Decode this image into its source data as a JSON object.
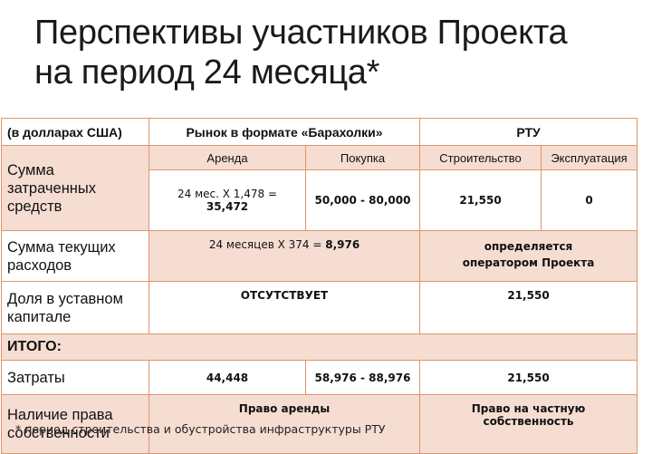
{
  "title": {
    "line1": "Перспективы участников Проекта",
    "line2": "на период 24 месяца*"
  },
  "table": {
    "header": {
      "unit": "(в долларах США)",
      "market": "Рынок в формате «Барахолки»",
      "rtu": "РТУ"
    },
    "subheader": {
      "rent": "Аренда",
      "purchase": "Покупка",
      "construction": "Строительство",
      "operation": "Эксплуатация"
    },
    "rows": {
      "spent": {
        "label": "Сумма затраченных средств",
        "rent_line1": "24 мес. Х 1,478 =",
        "rent_line2": "35,472",
        "purchase": "50,000 -  80,000",
        "construction": "21,550",
        "operation": "0"
      },
      "current": {
        "label": "Сумма текущих расходов",
        "market_prefix": "24 месяцев Х 374 = ",
        "market_value": "8,976",
        "rtu": "определяется оператором Проекта"
      },
      "share": {
        "label": "Доля в уставном капитале",
        "market": "ОТСУТСТВУЕТ",
        "rtu": "21,550"
      },
      "itogo": {
        "label": "ИТОГО:"
      },
      "costs": {
        "label": "Затраты",
        "rent": "44,448",
        "purchase": "58,976 - 88,976",
        "rtu": "21,550"
      },
      "ownership": {
        "label": "Наличие права собственности",
        "market": "Право аренды",
        "rtu": "Право на частную собственность"
      }
    }
  },
  "footnote": "* период строительства  и обустройства инфраструктуры РТУ",
  "colors": {
    "border": "#e0956a",
    "pink_fill": "#f6ddd2"
  }
}
